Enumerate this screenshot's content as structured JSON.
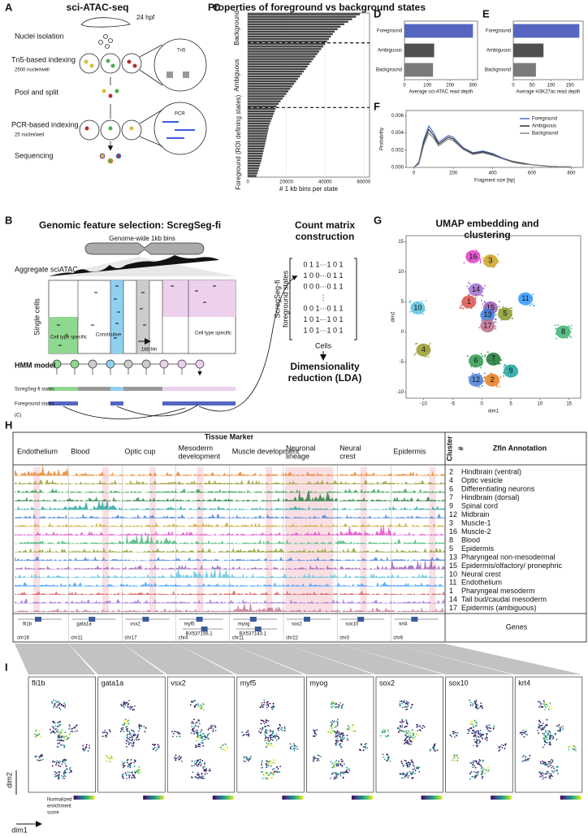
{
  "panel_labels": [
    "A",
    "B",
    "C",
    "D",
    "E",
    "F",
    "G",
    "H",
    "I"
  ],
  "a": {
    "title": "sci-ATAC-seq",
    "stage": "24 hpf",
    "steps": [
      "Nuclei isolation",
      "Tn5-based indexing",
      "2500 nuclei/well",
      "Pool and split",
      "PCR-based indexing",
      "25 nuclei/well",
      "Sequencing"
    ],
    "tn5": "Tn5",
    "pcr": "PCR"
  },
  "c": {
    "title": "Properties of foreground vs background states",
    "xlabel": "# 1 kb bins per state",
    "xlim": [
      0,
      63000
    ],
    "xticks": [
      0,
      20000,
      40000,
      60000
    ],
    "color": "#444444",
    "groups": [
      {
        "label": "Background",
        "values": [
          58000,
          56000,
          54000,
          52000,
          50000,
          48000,
          46500,
          45000,
          44000,
          43000,
          42000,
          41000
        ]
      },
      {
        "label": "Ambiguous",
        "values": [
          40000,
          39000,
          38000,
          37000,
          36000,
          35000,
          34000,
          33000,
          32000,
          31000,
          30000,
          29000,
          28000,
          27000,
          26000,
          25000,
          24000,
          23000,
          22000,
          21000,
          20000,
          19000,
          18000,
          17000,
          16000,
          15000
        ]
      },
      {
        "label": "Foreground (ROI defining states)",
        "values": [
          14500,
          14000,
          13500,
          13000,
          12500,
          12000,
          11500,
          11000,
          10800,
          10500,
          10200,
          10000,
          9700,
          9400,
          9100,
          8800,
          8500,
          8200,
          7900,
          7600,
          7300,
          7000,
          6600,
          6200,
          5800,
          5400,
          5000,
          4500
        ]
      }
    ]
  },
  "d": {
    "type": "bar",
    "categories": [
      "Foreground",
      "Ambiguous",
      "Background"
    ],
    "values": [
      300,
      130,
      125
    ],
    "colors": [
      "#5566c0",
      "#505050",
      "#7a7a7a"
    ],
    "xlim": [
      0,
      320
    ],
    "xticks": [
      0,
      100,
      200,
      300
    ],
    "xlabel": "Average sci-ATAC read depth"
  },
  "e": {
    "type": "bar",
    "categories": [
      "Foreground",
      "Ambiguous",
      "Background"
    ],
    "values": [
      175,
      80,
      60
    ],
    "colors": [
      "#5566c0",
      "#505050",
      "#7a7a7a"
    ],
    "xlim": [
      0,
      185
    ],
    "xticks": [
      0,
      50,
      100,
      150
    ],
    "xlabel": "Average H3K27ac read depth"
  },
  "f": {
    "type": "line",
    "xlabel": "Fragment size [bp]",
    "ylabel": "Probability",
    "xlim": [
      -40,
      860
    ],
    "ylim": [
      0,
      0.0066
    ],
    "xticks": [
      0,
      200,
      400,
      600,
      800
    ],
    "yticks": [
      {
        "value": 0,
        "label": "0.000"
      },
      {
        "value": 0.002,
        "label": "0.002"
      },
      {
        "value": 0.004,
        "label": "0.004"
      },
      {
        "value": 0.006,
        "label": "0.006"
      }
    ],
    "x": [
      0,
      25,
      50,
      75,
      100,
      125,
      150,
      175,
      200,
      225,
      250,
      300,
      350,
      400,
      450,
      500,
      550,
      600,
      700,
      800
    ],
    "series": [
      {
        "name": "Foreground",
        "color": "#4f6fc4",
        "values": [
          0,
          0.0006,
          0.0032,
          0.0048,
          0.004,
          0.0029,
          0.0033,
          0.0037,
          0.0035,
          0.0029,
          0.0023,
          0.0017,
          0.0019,
          0.0016,
          0.0011,
          0.0007,
          0.0005,
          0.0003,
          0.0001,
          5e-05
        ]
      },
      {
        "name": "Ambiguous",
        "color": "#333333",
        "values": [
          0,
          0.0005,
          0.0029,
          0.0044,
          0.0037,
          0.0027,
          0.0031,
          0.0035,
          0.0033,
          0.0027,
          0.0022,
          0.0016,
          0.0018,
          0.0015,
          0.001,
          0.0007,
          0.0005,
          0.0003,
          0.0001,
          5e-05
        ]
      },
      {
        "name": "Background",
        "color": "#888888",
        "values": [
          0,
          0.0004,
          0.0026,
          0.004,
          0.0034,
          0.0025,
          0.0029,
          0.0033,
          0.0031,
          0.0026,
          0.0021,
          0.0015,
          0.0017,
          0.0014,
          0.001,
          0.0006,
          0.0004,
          0.0003,
          0.0001,
          5e-05
        ]
      }
    ]
  },
  "b": {
    "title": "Genomic feature selection: ScregSeg-fi",
    "genome": "Genome-wide 1kb bins",
    "aggregate": "Aggregate sciATAC",
    "single": "Single cells",
    "specific": "Cell type specific",
    "constitutive": "Constitutive",
    "bin": "1kb bin",
    "hmm": "HMM model",
    "states": "ScregSeg-fi states",
    "foreground": "Foreground states",
    "ref": "(C)"
  },
  "matrix": {
    "title": [
      "Count matrix",
      "construction"
    ],
    "rows": [
      "0 1 1···1 0 1",
      "1 0 0···0 1 1",
      "0 0 0···0 1 1",
      "⋮",
      "0 0 1···0 1 1",
      "1 0 1···1 0 1",
      "1 0 1···1 0 1"
    ],
    "ylabel": [
      "ScregSeg-fi",
      "foreground states"
    ],
    "xlabel": "Cells",
    "reduction": [
      "Dimensionality",
      "reduction (LDA)"
    ]
  },
  "g": {
    "type": "scatter",
    "title": [
      "UMAP embedding and",
      "clustering"
    ],
    "xlabel": "dim1",
    "ylabel": "dim2",
    "xlim": [
      -13,
      17
    ],
    "ylim": [
      -11,
      16
    ],
    "xticks": [
      -10,
      -5,
      0,
      5,
      10,
      15
    ],
    "yticks": [
      -10,
      -5,
      0,
      5,
      10,
      15
    ],
    "clusters": [
      {
        "label": "16",
        "x": -1.5,
        "y": 12.5,
        "color": "#e040c8"
      },
      {
        "label": "3",
        "x": 1.5,
        "y": 11.8,
        "color": "#c9a227"
      },
      {
        "label": "14",
        "x": -1,
        "y": 7,
        "color": "#a070d0"
      },
      {
        "label": "1",
        "x": -2.2,
        "y": 5,
        "color": "#d9534f"
      },
      {
        "label": "11",
        "x": 7.5,
        "y": 5.5,
        "color": "#3399ff"
      },
      {
        "label": "10",
        "x": -11,
        "y": 4,
        "color": "#5bc0de"
      },
      {
        "label": "15",
        "x": 1.5,
        "y": 4,
        "color": "#9b59b6"
      },
      {
        "label": "13",
        "x": 1,
        "y": 2.8,
        "color": "#3b7dd8"
      },
      {
        "label": "5",
        "x": 4,
        "y": 3,
        "color": "#8a9a2a"
      },
      {
        "label": "17",
        "x": 1,
        "y": 1,
        "color": "#c07090"
      },
      {
        "label": "8",
        "x": 14,
        "y": 0,
        "color": "#3cb371"
      },
      {
        "label": "4",
        "x": -10,
        "y": -3,
        "color": "#9a9a30"
      },
      {
        "label": "6",
        "x": -1,
        "y": -4.8,
        "color": "#2e9b4f"
      },
      {
        "label": "7",
        "x": 2,
        "y": -4.5,
        "color": "#1f7a3a"
      },
      {
        "label": "9",
        "x": 5,
        "y": -6.5,
        "color": "#20a39e"
      },
      {
        "label": "12",
        "x": -1,
        "y": -8,
        "color": "#4a7fd6"
      },
      {
        "label": "2",
        "x": 1.8,
        "y": -8,
        "color": "#e67e22"
      }
    ]
  },
  "h": {
    "title": "Tissue Marker",
    "tissues": [
      "Endothelium",
      "Blood",
      "Optic cup",
      [
        "Mesoderm",
        "development"
      ],
      "Muscle development",
      [
        "Neuronal",
        "lineage"
      ],
      [
        "Neural",
        "crest"
      ],
      "Epidermis"
    ],
    "cluster_header": [
      "Cluster",
      "#"
    ],
    "annotation_header": "Zfin Annotation",
    "annotations": [
      {
        "cluster": "2",
        "name": "Hindbrain (ventral)"
      },
      {
        "cluster": "4",
        "name": "Optic vesicle"
      },
      {
        "cluster": "6",
        "name": "Differentiating neurons"
      },
      {
        "cluster": "7",
        "name": "Hindbrain (dorsal)"
      },
      {
        "cluster": "9",
        "name": "Spinal cord"
      },
      {
        "cluster": "12",
        "name": "Midbrain"
      },
      {
        "cluster": "3",
        "name": "Muscle-1"
      },
      {
        "cluster": "16",
        "name": "Muscle-2"
      },
      {
        "cluster": "8",
        "name": "Blood"
      },
      {
        "cluster": "5",
        "name": "Epidermis"
      },
      {
        "cluster": "13",
        "name": "Pharyngeal non-mesodermal"
      },
      {
        "cluster": "15",
        "name": "Epidermis/olfactory/ pronephric"
      },
      {
        "cluster": "10",
        "name": "Neural crest"
      },
      {
        "cluster": "11",
        "name": "Endothelium"
      },
      {
        "cluster": "1",
        "name": "Pharyngeal mesoderm"
      },
      {
        "cluster": "14",
        "name": "Tail bud/caudal mesoderm"
      },
      {
        "cluster": "17",
        "name": "Epidermis (ambiguous)"
      }
    ],
    "genes": [
      [
        "fli1b"
      ],
      [
        "gata1a"
      ],
      [
        "vsx2"
      ],
      [
        "myf5",
        "BX537156.1"
      ],
      [
        "myog",
        "BX537143.1"
      ],
      [
        "sox2"
      ],
      [
        "sox10"
      ],
      [
        "krt4"
      ]
    ],
    "chromosomes": [
      "chr16",
      "chr11",
      "chr17",
      "chr4",
      "chr11",
      "chr22",
      "chr3",
      "chr6"
    ],
    "genes_label": "Genes"
  },
  "i": {
    "genes": [
      "fli1b",
      "gata1a",
      "vsx2",
      "myf5",
      "myog",
      "sox2",
      "sox10",
      "krt4"
    ],
    "xlabel": "dim1",
    "ylabel": "dim2",
    "scale": [
      "Normalized",
      "enrichment",
      "score"
    ]
  }
}
